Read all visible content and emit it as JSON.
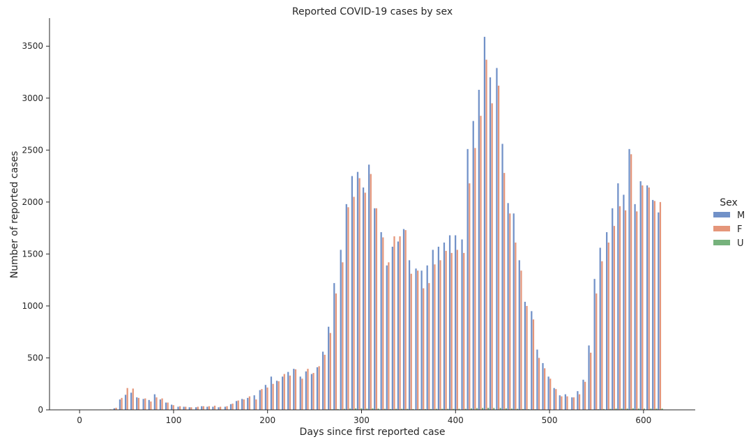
{
  "chart_data": {
    "type": "bar",
    "title": "Reported COVID-19 cases by sex",
    "xlabel": "Days since first reported case",
    "ylabel": "Number of reported cases",
    "xlim": [
      -32,
      655
    ],
    "ylim": [
      0,
      3770
    ],
    "xticks": [
      0,
      100,
      200,
      300,
      400,
      500,
      600
    ],
    "yticks": [
      0,
      500,
      1000,
      1500,
      2000,
      2500,
      3000,
      3500
    ],
    "grid": false,
    "legend": {
      "title": "Sex",
      "placement": "right"
    },
    "bin_width_days": 6.2,
    "series": [
      {
        "name": "M",
        "color": "#7191c8",
        "x": [
          33,
          39,
          45,
          51,
          57,
          63,
          70,
          76,
          82,
          88,
          94,
          100,
          107,
          113,
          119,
          126,
          132,
          138,
          144,
          150,
          157,
          163,
          169,
          175,
          181,
          188,
          194,
          200,
          206,
          212,
          218,
          224,
          230,
          237,
          243,
          249,
          255,
          261,
          267,
          273,
          280,
          286,
          292,
          298,
          304,
          310,
          316,
          323,
          329,
          335,
          341,
          347,
          353,
          360,
          366,
          372,
          378,
          384,
          390,
          396,
          402,
          409,
          415,
          421,
          427,
          433,
          439,
          446,
          452,
          458,
          464,
          470,
          476,
          483,
          489,
          495,
          501,
          507,
          513,
          519,
          526,
          532,
          538,
          544,
          550,
          556,
          563,
          569,
          575,
          581,
          587,
          593,
          599,
          606,
          612,
          618
        ],
        "values": [
          2,
          15,
          100,
          145,
          165,
          120,
          105,
          95,
          150,
          100,
          70,
          50,
          30,
          30,
          25,
          25,
          35,
          30,
          30,
          25,
          30,
          55,
          85,
          105,
          115,
          140,
          190,
          240,
          320,
          280,
          320,
          365,
          395,
          320,
          370,
          345,
          410,
          560,
          800,
          1220,
          1540,
          1980,
          2250,
          2290,
          2140,
          2360,
          1940,
          1710,
          1390,
          1570,
          1620,
          1740,
          1440,
          1360,
          1340,
          1390,
          1540,
          1570,
          1610,
          1680,
          1680,
          1640,
          2510,
          2780,
          3080,
          3590,
          3200,
          3290,
          2560,
          1990,
          1890,
          1440,
          1040,
          950,
          580,
          450,
          320,
          210,
          140,
          150,
          120,
          180,
          290,
          620,
          1260,
          1560,
          1710,
          1940,
          2180,
          2070,
          2510,
          1980,
          2200,
          2160,
          2020,
          1900
        ]
      },
      {
        "name": "F",
        "color": "#e5967a",
        "x": [
          33,
          39,
          45,
          51,
          57,
          63,
          70,
          76,
          82,
          88,
          94,
          100,
          107,
          113,
          119,
          126,
          132,
          138,
          144,
          150,
          157,
          163,
          169,
          175,
          181,
          188,
          194,
          200,
          206,
          212,
          218,
          224,
          230,
          237,
          243,
          249,
          255,
          261,
          267,
          273,
          280,
          286,
          292,
          298,
          304,
          310,
          316,
          323,
          329,
          335,
          341,
          347,
          353,
          360,
          366,
          372,
          378,
          384,
          390,
          396,
          402,
          409,
          415,
          421,
          427,
          433,
          439,
          446,
          452,
          458,
          464,
          470,
          476,
          483,
          489,
          495,
          501,
          507,
          513,
          519,
          526,
          532,
          538,
          544,
          550,
          556,
          563,
          569,
          575,
          581,
          587,
          593,
          599,
          606,
          612,
          618
        ],
        "values": [
          5,
          20,
          115,
          210,
          205,
          115,
          110,
          80,
          120,
          110,
          70,
          45,
          35,
          30,
          25,
          30,
          35,
          35,
          40,
          30,
          35,
          60,
          90,
          100,
          130,
          100,
          200,
          215,
          250,
          275,
          345,
          330,
          390,
          300,
          395,
          355,
          420,
          530,
          740,
          1120,
          1420,
          1950,
          2050,
          2230,
          2090,
          2270,
          1940,
          1660,
          1420,
          1670,
          1670,
          1730,
          1310,
          1340,
          1170,
          1220,
          1400,
          1440,
          1530,
          1510,
          1540,
          1510,
          2180,
          2520,
          2830,
          3370,
          2950,
          3120,
          2280,
          1890,
          1610,
          1340,
          1000,
          870,
          500,
          400,
          300,
          200,
          130,
          130,
          120,
          150,
          270,
          550,
          1120,
          1430,
          1610,
          1770,
          1960,
          1920,
          2460,
          1910,
          2160,
          2140,
          2010,
          2000
        ]
      },
      {
        "name": "U",
        "color": "#76b27c",
        "x": [
          33,
          39,
          45,
          51,
          57,
          63,
          70,
          76,
          82,
          88,
          94,
          100,
          107,
          113,
          119,
          126,
          132,
          138,
          144,
          150,
          157,
          163,
          169,
          175,
          181,
          188,
          194,
          200,
          206,
          212,
          218,
          224,
          230,
          237,
          243,
          249,
          255,
          261,
          267,
          273,
          280,
          286,
          292,
          298,
          304,
          310,
          316,
          323,
          329,
          335,
          341,
          347,
          353,
          360,
          366,
          372,
          378,
          384,
          390,
          396,
          402,
          409,
          415,
          421,
          427,
          433,
          439,
          446,
          452,
          458,
          464,
          470,
          476,
          483,
          489,
          495,
          501,
          507,
          513,
          519,
          526,
          532,
          538,
          544,
          550,
          556,
          563,
          569,
          575,
          581,
          587,
          593,
          599,
          606,
          612,
          618
        ],
        "values": [
          0,
          0,
          0,
          0,
          0,
          0,
          0,
          0,
          0,
          0,
          0,
          0,
          0,
          0,
          0,
          0,
          0,
          0,
          0,
          0,
          0,
          0,
          0,
          0,
          0,
          0,
          0,
          2,
          2,
          2,
          2,
          3,
          3,
          2,
          3,
          3,
          3,
          5,
          6,
          8,
          10,
          12,
          14,
          14,
          12,
          14,
          12,
          10,
          8,
          10,
          10,
          10,
          8,
          8,
          8,
          8,
          10,
          10,
          10,
          10,
          10,
          10,
          14,
          16,
          18,
          20,
          18,
          18,
          14,
          12,
          10,
          8,
          6,
          6,
          4,
          3,
          2,
          2,
          1,
          1,
          1,
          1,
          2,
          4,
          6,
          8,
          10,
          12,
          12,
          12,
          14,
          12,
          12,
          12,
          12,
          12
        ]
      }
    ]
  }
}
